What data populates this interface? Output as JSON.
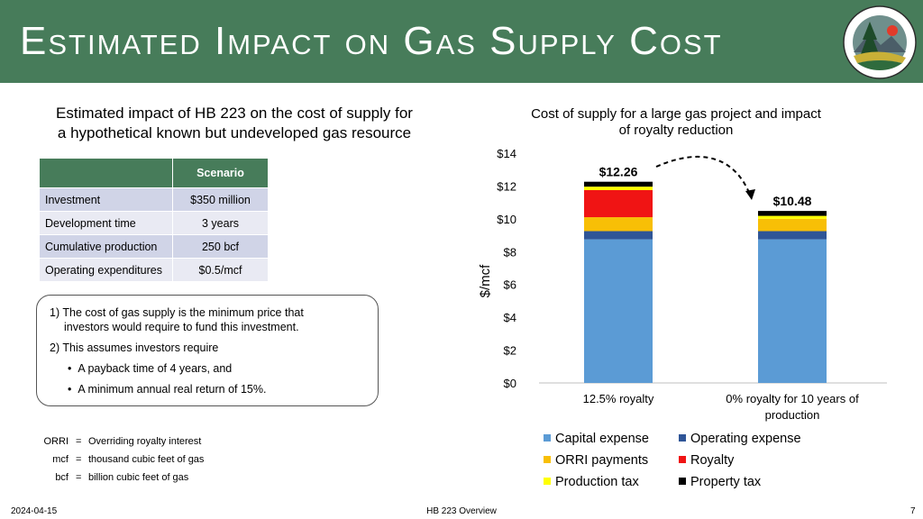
{
  "slide": {
    "title": "Estimated Impact on Gas Supply Cost",
    "left_heading_line1": "Estimated impact of HB 223 on the cost of supply for",
    "left_heading_line2": "a hypothetical known but undeveloped gas resource",
    "footer_date": "2024-04-15",
    "footer_center": "HB 223 Overview",
    "page_number": "7"
  },
  "table": {
    "header": "Scenario",
    "rows": [
      {
        "label": "Investment",
        "value": "$350 million"
      },
      {
        "label": "Development time",
        "value": "3 years"
      },
      {
        "label": "Cumulative production",
        "value": "250 bcf"
      },
      {
        "label": "Operating expenditures",
        "value": "$0.5/mcf"
      }
    ]
  },
  "notes": {
    "n1_line1": "1) The cost of gas supply is the minimum price that",
    "n1_line2": "investors would require to fund this investment.",
    "n2": "2) This assumes investors require",
    "bullet1": "A payback time of 4 years, and",
    "bullet2": "A minimum annual real return of 15%."
  },
  "glossary": [
    {
      "abbr": "ORRI",
      "eq": "=",
      "def": "Overriding royalty interest"
    },
    {
      "abbr": "mcf",
      "eq": "=",
      "def": "thousand cubic feet of gas"
    },
    {
      "abbr": "bcf",
      "eq": "=",
      "def": "billion cubic feet of gas"
    }
  ],
  "chart_data": {
    "type": "bar",
    "stacked": true,
    "title_line1": "Cost of supply for a large gas project and impact",
    "title_line2": "of royalty reduction",
    "ylabel": "$/mcf",
    "ylim": [
      0,
      14
    ],
    "yticks": [
      "$0",
      "$2",
      "$4",
      "$6",
      "$8",
      "$10",
      "$12",
      "$14"
    ],
    "categories": [
      "12.5% royalty",
      "0% royalty for 10 years of production"
    ],
    "category_label_lines": [
      [
        "12.5% royalty"
      ],
      [
        "0% royalty for 10 years of",
        "production"
      ]
    ],
    "totals": [
      "$12.26",
      "$10.48"
    ],
    "series": [
      {
        "name": "Capital expense",
        "color": "#5b9bd5",
        "values": [
          8.75,
          8.75
        ]
      },
      {
        "name": "Operating expense",
        "color": "#2f5597",
        "values": [
          0.5,
          0.5
        ]
      },
      {
        "name": "ORRI payments",
        "color": "#f8bf06",
        "values": [
          0.85,
          0.75
        ]
      },
      {
        "name": "Royalty",
        "color": "#f01414",
        "values": [
          1.65,
          0.0
        ]
      },
      {
        "name": "Production tax",
        "color": "#ffff00",
        "values": [
          0.21,
          0.18
        ]
      },
      {
        "name": "Property tax",
        "color": "#000000",
        "values": [
          0.3,
          0.3
        ]
      }
    ],
    "legend_position": "bottom",
    "grid": false,
    "annotation": "dashed curved arrow from first bar to second bar"
  }
}
